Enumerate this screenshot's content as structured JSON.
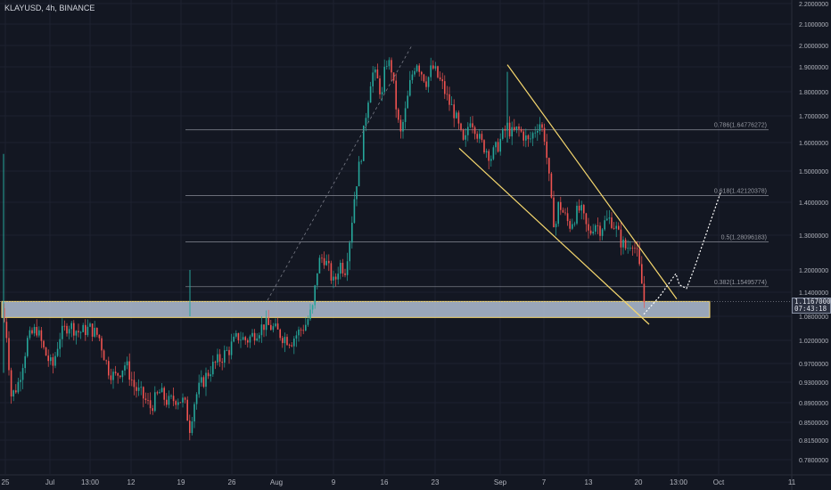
{
  "symbol": {
    "title": "KLAYUSD, 4h, BINANCE"
  },
  "last_price": {
    "price": "1.1167000",
    "countdown": "07:43:18"
  },
  "chart_data": {
    "type": "candlestick",
    "symbol": "KLAYUSD",
    "timeframe": "4h",
    "exchange": "BINANCE",
    "y_tick_labels": [
      "2.2000000",
      "2.1000000",
      "2.0000000",
      "1.9000000",
      "1.8000000",
      "1.7000000",
      "1.6000000",
      "1.5000000",
      "1.4000000",
      "1.3000000",
      "1.2000000",
      "1.1400000",
      "1.0800000",
      "1.0200000",
      "0.9700000",
      "0.9300000",
      "0.8900000",
      "0.8500000",
      "0.8150000",
      "0.7800000"
    ],
    "y_ticks": [
      2.2,
      2.1,
      2.0,
      1.9,
      1.8,
      1.7,
      1.6,
      1.5,
      1.4,
      1.3,
      1.2,
      1.14,
      1.08,
      1.02,
      0.97,
      0.93,
      0.89,
      0.85,
      0.815,
      0.78
    ],
    "x_tick_labels": [
      "25",
      "Jul",
      "13:00",
      "12",
      "19",
      "26",
      "Aug",
      "9",
      "16",
      "23",
      "Sep",
      "7",
      "13",
      "20",
      "13:00",
      "Oct",
      "11"
    ],
    "fib_levels": [
      {
        "label": "0.786(1.64776272)",
        "value": 1.64776272
      },
      {
        "label": "0.618(1.42120378)",
        "value": 1.42120378
      },
      {
        "label": "0.5(1.28096183)",
        "value": 1.28096183
      },
      {
        "label": "0.382(1.15495774)",
        "value": 1.15495774
      }
    ],
    "support_zone": {
      "low": 1.077,
      "high": 1.117
    },
    "trend_line_upper": [
      [
        "Sep 4",
        1.91
      ],
      [
        "Sep 23",
        1.123
      ]
    ],
    "trend_line_lower": [
      [
        "Aug 26",
        1.58
      ],
      [
        "Sep 21",
        1.06
      ]
    ],
    "projection_path": [
      [
        1.085,
        1.085
      ],
      [
        1.13,
        1.16
      ],
      [
        1.19,
        1.15
      ],
      [
        1.16,
        1.19
      ],
      [
        1.15,
        1.16
      ],
      [
        1.2,
        1.31
      ],
      [
        1.43,
        1.43
      ]
    ],
    "candle_path": [
      [
        0,
        1.1
      ],
      [
        6,
        1.05
      ],
      [
        12,
        0.9
      ],
      [
        20,
        0.93
      ],
      [
        30,
        1.02
      ],
      [
        40,
        1.05
      ],
      [
        48,
        1.0
      ],
      [
        58,
        0.96
      ],
      [
        66,
        1.03
      ],
      [
        76,
        1.06
      ],
      [
        88,
        1.04
      ],
      [
        100,
        1.05
      ],
      [
        110,
        1.03
      ],
      [
        120,
        0.96
      ],
      [
        128,
        0.94
      ],
      [
        140,
        0.97
      ],
      [
        150,
        0.92
      ],
      [
        160,
        0.9
      ],
      [
        168,
        0.88
      ],
      [
        178,
        0.91
      ],
      [
        188,
        0.89
      ],
      [
        198,
        0.9
      ],
      [
        206,
        0.89
      ],
      [
        212,
        0.84
      ],
      [
        218,
        0.9
      ],
      [
        226,
        0.93
      ],
      [
        236,
        0.96
      ],
      [
        246,
        0.98
      ],
      [
        256,
        1.0
      ],
      [
        266,
        1.03
      ],
      [
        276,
        1.02
      ],
      [
        286,
        1.04
      ],
      [
        296,
        1.06
      ],
      [
        306,
        1.05
      ],
      [
        316,
        1.03
      ],
      [
        326,
        1.02
      ],
      [
        334,
        1.04
      ],
      [
        342,
        1.06
      ],
      [
        350,
        1.1
      ],
      [
        356,
        1.22
      ],
      [
        362,
        1.24
      ],
      [
        368,
        1.2
      ],
      [
        374,
        1.16
      ],
      [
        380,
        1.22
      ],
      [
        386,
        1.2
      ],
      [
        392,
        1.3
      ],
      [
        398,
        1.45
      ],
      [
        404,
        1.55
      ],
      [
        410,
        1.72
      ],
      [
        416,
        1.88
      ],
      [
        422,
        1.85
      ],
      [
        428,
        1.78
      ],
      [
        432,
        1.93
      ],
      [
        438,
        1.9
      ],
      [
        444,
        1.72
      ],
      [
        448,
        1.62
      ],
      [
        454,
        1.72
      ],
      [
        460,
        1.85
      ],
      [
        466,
        1.93
      ],
      [
        472,
        1.88
      ],
      [
        478,
        1.84
      ],
      [
        484,
        1.9
      ],
      [
        490,
        1.86
      ],
      [
        496,
        1.82
      ],
      [
        502,
        1.76
      ],
      [
        508,
        1.72
      ],
      [
        514,
        1.65
      ],
      [
        520,
        1.58
      ],
      [
        526,
        1.7
      ],
      [
        532,
        1.66
      ],
      [
        538,
        1.6
      ],
      [
        544,
        1.58
      ],
      [
        550,
        1.55
      ],
      [
        556,
        1.58
      ],
      [
        562,
        1.62
      ],
      [
        568,
        1.66
      ],
      [
        574,
        1.63
      ],
      [
        580,
        1.65
      ],
      [
        586,
        1.63
      ],
      [
        592,
        1.6
      ],
      [
        598,
        1.64
      ],
      [
        604,
        1.68
      ],
      [
        610,
        1.62
      ],
      [
        614,
        1.5
      ],
      [
        618,
        1.38
      ],
      [
        622,
        1.32
      ],
      [
        626,
        1.4
      ],
      [
        632,
        1.36
      ],
      [
        638,
        1.33
      ],
      [
        644,
        1.36
      ],
      [
        650,
        1.38
      ],
      [
        656,
        1.33
      ],
      [
        660,
        1.3
      ],
      [
        666,
        1.34
      ],
      [
        672,
        1.32
      ],
      [
        678,
        1.34
      ],
      [
        684,
        1.35
      ],
      [
        690,
        1.32
      ],
      [
        696,
        1.28
      ],
      [
        702,
        1.26
      ],
      [
        708,
        1.29
      ],
      [
        714,
        1.24
      ],
      [
        718,
        1.18
      ],
      [
        722,
        1.11
      ]
    ]
  }
}
